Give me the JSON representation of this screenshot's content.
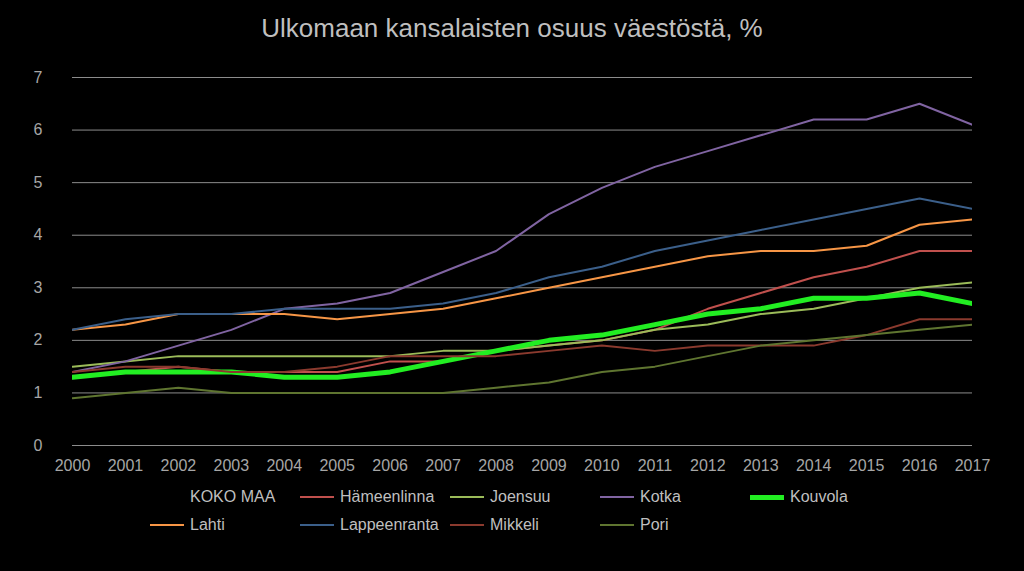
{
  "chart_data": {
    "type": "line",
    "title": "Ulkomaan kansalaisten osuus väestöstä, %",
    "x": [
      2000,
      2001,
      2002,
      2003,
      2004,
      2005,
      2006,
      2007,
      2008,
      2009,
      2010,
      2011,
      2012,
      2013,
      2014,
      2015,
      2016,
      2017
    ],
    "xlim": [
      2000,
      2017
    ],
    "xticks": [
      2000,
      2001,
      2002,
      2003,
      2004,
      2005,
      2006,
      2007,
      2008,
      2009,
      2010,
      2011,
      2012,
      2013,
      2014,
      2015,
      2016,
      2017
    ],
    "ylim": [
      0,
      7
    ],
    "yticks": [
      0,
      1,
      2,
      3,
      4,
      5,
      6,
      7
    ],
    "grid": true,
    "legend": "bottom",
    "series": [
      {
        "name": "KOKO MAA",
        "color": "#000000",
        "values": [
          null,
          null,
          null,
          null,
          null,
          null,
          null,
          null,
          null,
          null,
          null,
          null,
          null,
          null,
          null,
          null,
          null,
          null
        ]
      },
      {
        "name": "Hämeenlinna",
        "color": "#c0504d",
        "values": [
          1.3,
          1.4,
          1.5,
          1.4,
          1.4,
          1.4,
          1.6,
          1.6,
          1.8,
          1.9,
          2.0,
          2.2,
          2.6,
          2.9,
          3.2,
          3.4,
          3.7,
          3.7
        ]
      },
      {
        "name": "Joensuu",
        "color": "#9bbb59",
        "values": [
          1.5,
          1.6,
          1.7,
          1.7,
          1.7,
          1.7,
          1.7,
          1.8,
          1.8,
          1.9,
          2.0,
          2.2,
          2.3,
          2.5,
          2.6,
          2.8,
          3.0,
          3.1
        ]
      },
      {
        "name": "Kotka",
        "color": "#8064a2",
        "values": [
          1.4,
          1.6,
          1.9,
          2.2,
          2.6,
          2.7,
          2.9,
          3.3,
          3.7,
          4.4,
          4.9,
          5.3,
          5.6,
          5.9,
          6.2,
          6.2,
          6.5,
          6.1
        ]
      },
      {
        "name": "Kouvola",
        "color": "#22ee22",
        "line_style": "thick",
        "values": [
          1.3,
          1.4,
          1.4,
          1.4,
          1.3,
          1.3,
          1.4,
          1.6,
          1.8,
          2.0,
          2.1,
          2.3,
          2.5,
          2.6,
          2.8,
          2.8,
          2.9,
          2.7
        ]
      },
      {
        "name": "Lahti",
        "color": "#f79646",
        "values": [
          2.2,
          2.3,
          2.5,
          2.5,
          2.5,
          2.4,
          2.5,
          2.6,
          2.8,
          3.0,
          3.2,
          3.4,
          3.6,
          3.7,
          3.7,
          3.8,
          4.2,
          4.3
        ]
      },
      {
        "name": "Lappeenranta",
        "color": "#3b5f8a",
        "values": [
          2.2,
          2.4,
          2.5,
          2.5,
          2.6,
          2.6,
          2.6,
          2.7,
          2.9,
          3.2,
          3.4,
          3.7,
          3.9,
          4.1,
          4.3,
          4.5,
          4.7,
          4.5
        ]
      },
      {
        "name": "Mikkeli",
        "color": "#8b3a2e",
        "values": [
          1.4,
          1.5,
          1.5,
          1.4,
          1.4,
          1.5,
          1.7,
          1.7,
          1.7,
          1.8,
          1.9,
          1.8,
          1.9,
          1.9,
          1.9,
          2.1,
          2.4,
          2.4
        ]
      },
      {
        "name": "Pori",
        "color": "#5f7530",
        "values": [
          0.9,
          1.0,
          1.1,
          1.0,
          1.0,
          1.0,
          1.0,
          1.0,
          1.1,
          1.2,
          1.4,
          1.5,
          1.7,
          1.9,
          2.0,
          2.1,
          2.2,
          2.3
        ]
      }
    ]
  }
}
